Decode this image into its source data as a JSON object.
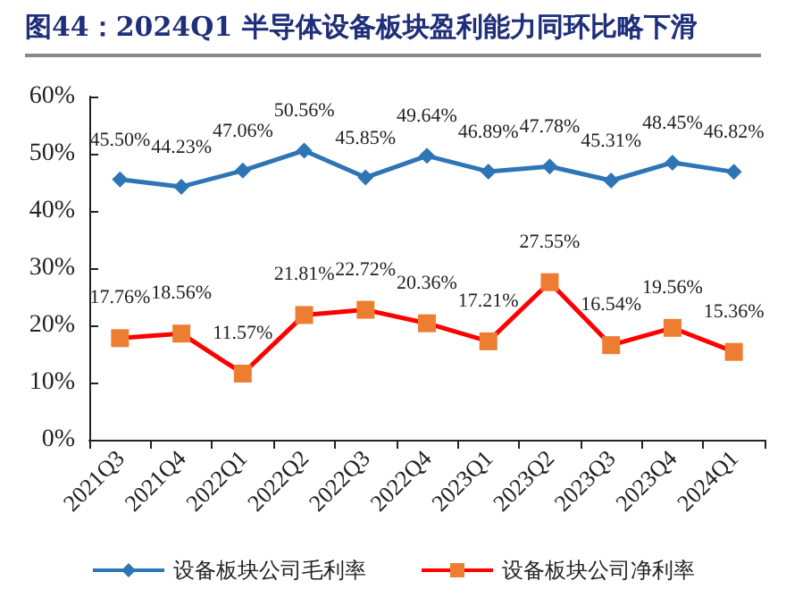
{
  "chart_data": {
    "type": "line",
    "title": "图44：2024Q1 半导体设备板块盈利能力同环比略下滑",
    "categories": [
      "2021Q3",
      "2021Q4",
      "2022Q1",
      "2022Q2",
      "2022Q3",
      "2022Q4",
      "2023Q1",
      "2023Q2",
      "2023Q3",
      "2023Q4",
      "2024Q1"
    ],
    "series": [
      {
        "name": "设备板块公司毛利率",
        "color": "#2e75b6",
        "marker": "diamond",
        "values": [
          45.5,
          44.23,
          47.06,
          50.56,
          45.85,
          49.64,
          46.89,
          47.78,
          45.31,
          48.45,
          46.82
        ],
        "value_labels": [
          "45.50%",
          "44.23%",
          "47.06%",
          "50.56%",
          "45.85%",
          "49.64%",
          "46.89%",
          "47.78%",
          "45.31%",
          "48.45%",
          "46.82%"
        ]
      },
      {
        "name": "设备板块公司净利率",
        "color": "#ff0000",
        "marker": "square",
        "values": [
          17.76,
          18.56,
          11.57,
          21.81,
          22.72,
          20.36,
          17.21,
          27.55,
          16.54,
          19.56,
          15.36
        ],
        "value_labels": [
          "17.76%",
          "18.56%",
          "11.57%",
          "21.81%",
          "22.72%",
          "20.36%",
          "17.21%",
          "27.55%",
          "16.54%",
          "19.56%",
          "15.36%"
        ]
      }
    ],
    "ylim": [
      0,
      60
    ],
    "yticks": [
      {
        "value": 0,
        "label": "0%"
      },
      {
        "value": 10,
        "label": "10%"
      },
      {
        "value": 20,
        "label": "20%"
      },
      {
        "value": 30,
        "label": "30%"
      },
      {
        "value": 40,
        "label": "40%"
      },
      {
        "value": 50,
        "label": "50%"
      },
      {
        "value": 60,
        "label": "60%"
      }
    ],
    "grid": false,
    "legend": "bottom"
  }
}
